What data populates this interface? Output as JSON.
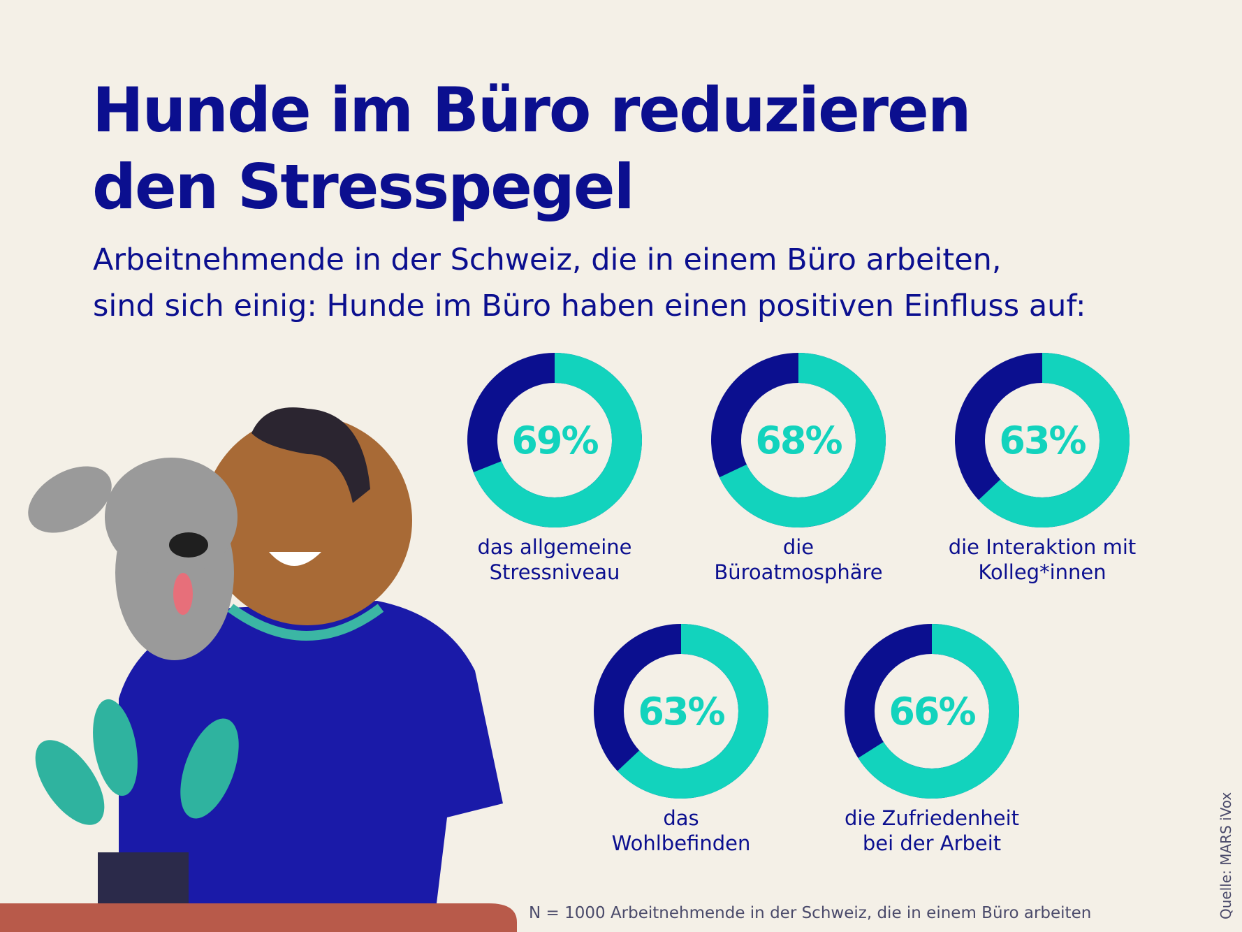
{
  "title": [
    "Hunde im Büro reduzieren",
    "den Stresspegel"
  ],
  "subtitle": [
    "Arbeitnehmende in der Schweiz, die in einem Büro arbeiten,",
    "sind sich einig: Hunde im Büro haben einen positiven Einfluss auf:"
  ],
  "chart_data": {
    "type": "donut",
    "categories": [
      [
        "das allgemeine",
        "Stressniveau"
      ],
      [
        "die",
        "Büroatmosphäre"
      ],
      [
        "die Interaktion mit",
        "Kolleg*innen"
      ],
      [
        "das",
        "Wohlbefinden"
      ],
      [
        "die Zufriedenheit",
        "bei der Arbeit"
      ]
    ],
    "values": [
      69,
      68,
      63,
      63,
      66
    ],
    "value_labels": [
      "69%",
      "68%",
      "63%",
      "63%",
      "66%"
    ],
    "ylim": [
      0,
      100
    ],
    "color": "#12d3bd",
    "rest_color": "#0b0f8f"
  },
  "note": "N = 1000 Arbeitnehmende in der Schweiz, die in einem Büro arbeiten",
  "source": "Quelle: MARS iVox"
}
